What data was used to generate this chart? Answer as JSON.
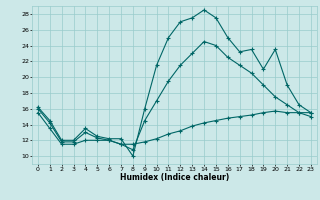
{
  "title": "",
  "xlabel": "Humidex (Indice chaleur)",
  "background_color": "#cce8e8",
  "grid_color": "#99cccc",
  "line_color": "#006666",
  "xlim": [
    -0.5,
    23.5
  ],
  "ylim": [
    9,
    29
  ],
  "yticks": [
    10,
    12,
    14,
    16,
    18,
    20,
    22,
    24,
    26,
    28
  ],
  "xticks": [
    0,
    1,
    2,
    3,
    4,
    5,
    6,
    7,
    8,
    9,
    10,
    11,
    12,
    13,
    14,
    15,
    16,
    17,
    18,
    19,
    20,
    21,
    22,
    23
  ],
  "series": [
    {
      "x": [
        0,
        1,
        2,
        3,
        4,
        5,
        6,
        7,
        8,
        9,
        10,
        11,
        12,
        13,
        14,
        15,
        16,
        17,
        18,
        19,
        20,
        21,
        22,
        23
      ],
      "y": [
        16.2,
        14.5,
        12.0,
        12.0,
        13.5,
        12.5,
        12.2,
        12.2,
        10.0,
        16.0,
        21.5,
        25.0,
        27.0,
        27.5,
        28.5,
        27.5,
        25.0,
        23.2,
        23.5,
        21.0,
        23.5,
        19.0,
        16.5,
        15.5
      ]
    },
    {
      "x": [
        0,
        1,
        2,
        3,
        4,
        5,
        6,
        7,
        8,
        9,
        10,
        11,
        12,
        13,
        14,
        15,
        16,
        17,
        18,
        19,
        20,
        21,
        22,
        23
      ],
      "y": [
        16.0,
        14.2,
        11.8,
        11.8,
        13.0,
        12.3,
        12.0,
        11.5,
        10.8,
        14.5,
        17.0,
        19.5,
        21.5,
        23.0,
        24.5,
        24.0,
        22.5,
        21.5,
        20.5,
        19.0,
        17.5,
        16.5,
        15.5,
        15.0
      ]
    },
    {
      "x": [
        0,
        1,
        2,
        3,
        4,
        5,
        6,
        7,
        8,
        9,
        10,
        11,
        12,
        13,
        14,
        15,
        16,
        17,
        18,
        19,
        20,
        21,
        22,
        23
      ],
      "y": [
        15.5,
        13.5,
        11.5,
        11.5,
        12.0,
        12.0,
        12.0,
        11.5,
        11.5,
        11.8,
        12.2,
        12.8,
        13.2,
        13.8,
        14.2,
        14.5,
        14.8,
        15.0,
        15.2,
        15.5,
        15.7,
        15.5,
        15.5,
        15.5
      ]
    }
  ]
}
